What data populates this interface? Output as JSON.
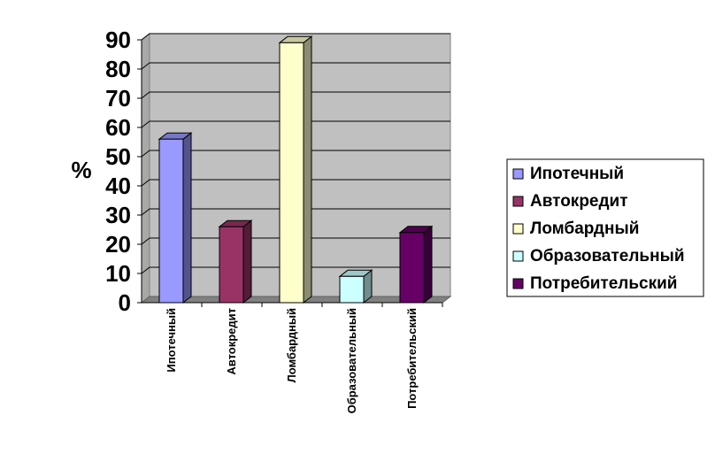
{
  "chart_data": {
    "type": "bar",
    "categories": [
      "Ипотечный",
      "Автокредит",
      "Ломбардный",
      "Образовательный",
      "Потребительский"
    ],
    "values": [
      56,
      26,
      89,
      9,
      24
    ],
    "colors": [
      "#9999ff",
      "#993366",
      "#ffffcc",
      "#ccffff",
      "#660066"
    ],
    "ylabel": "%",
    "ylim": [
      0,
      90
    ],
    "yticks": [
      "0",
      "10",
      "20",
      "30",
      "40",
      "50",
      "60",
      "70",
      "80",
      "90"
    ],
    "grid": true,
    "three_d": true,
    "wall_color": "#c0c0c0",
    "legend": {
      "placement": "right",
      "entries": [
        "Ипотечный",
        "Автокредит",
        "Ломбардный",
        "Образовательный",
        "Потребительский"
      ]
    }
  }
}
